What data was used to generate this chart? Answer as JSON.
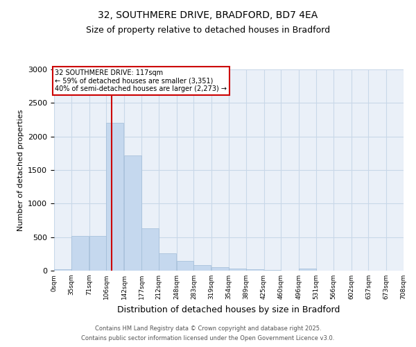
{
  "title": "32, SOUTHMERE DRIVE, BRADFORD, BD7 4EA",
  "subtitle": "Size of property relative to detached houses in Bradford",
  "xlabel": "Distribution of detached houses by size in Bradford",
  "ylabel": "Number of detached properties",
  "bar_color": "#c5d8ee",
  "bar_edge_color": "#a0bcd8",
  "grid_color": "#c8d8e8",
  "background_color": "#eaf0f8",
  "annotation_box_color": "#cc0000",
  "vline_color": "#cc0000",
  "vline_x": 117,
  "annotation_title": "32 SOUTHMERE DRIVE: 117sqm",
  "annotation_line1": "← 59% of detached houses are smaller (3,351)",
  "annotation_line2": "40% of semi-detached houses are larger (2,273) →",
  "bin_width": 35,
  "bins_start": [
    0,
    35,
    71,
    106,
    142,
    177,
    212,
    248,
    283,
    319,
    354,
    389,
    425,
    460,
    496,
    531,
    566,
    602,
    637,
    673
  ],
  "bin_labels": [
    "0sqm",
    "35sqm",
    "71sqm",
    "106sqm",
    "142sqm",
    "177sqm",
    "212sqm",
    "248sqm",
    "283sqm",
    "319sqm",
    "354sqm",
    "389sqm",
    "425sqm",
    "460sqm",
    "496sqm",
    "531sqm",
    "566sqm",
    "602sqm",
    "637sqm",
    "673sqm",
    "708sqm"
  ],
  "values": [
    20,
    520,
    520,
    2200,
    1720,
    630,
    260,
    140,
    80,
    55,
    35,
    20,
    10,
    5,
    30,
    5,
    0,
    0,
    0,
    0
  ],
  "ylim": [
    0,
    3000
  ],
  "yticks": [
    0,
    500,
    1000,
    1500,
    2000,
    2500,
    3000
  ],
  "footer1": "Contains HM Land Registry data © Crown copyright and database right 2025.",
  "footer2": "Contains public sector information licensed under the Open Government Licence v3.0."
}
